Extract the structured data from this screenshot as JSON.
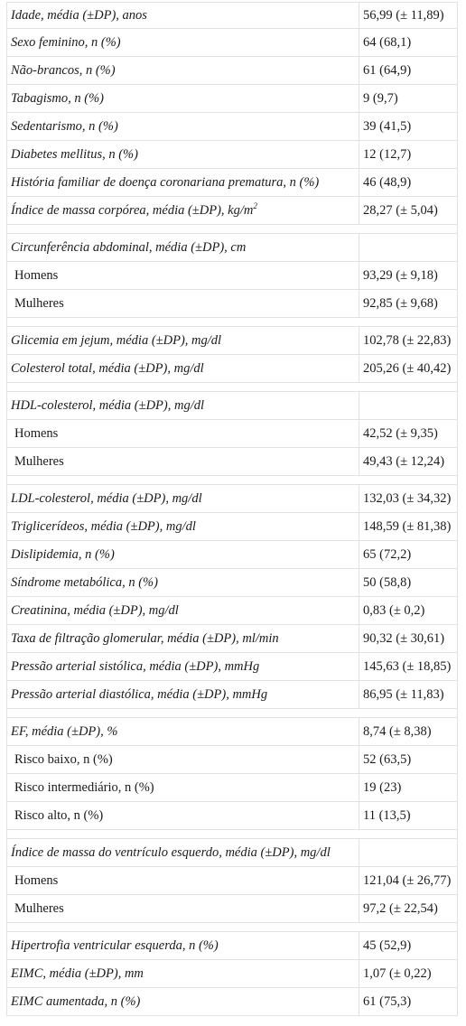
{
  "table": {
    "rows": [
      {
        "type": "italic",
        "label": "Idade, média (±DP), anos",
        "value": "56,99 (± 11,89)"
      },
      {
        "type": "italic",
        "label": "Sexo feminino, n (%)",
        "value": "64 (68,1)"
      },
      {
        "type": "italic",
        "label": "Não-brancos, n (%)",
        "value": "61 (64,9)"
      },
      {
        "type": "italic",
        "label": "Tabagismo, n (%)",
        "value": "9 (9,7)"
      },
      {
        "type": "italic",
        "label": "Sedentarismo, n (%)",
        "value": "39 (41,5)"
      },
      {
        "type": "italic",
        "label": "Diabetes mellitus, n (%)",
        "value": "12 (12,7)"
      },
      {
        "type": "italic",
        "label": "História familiar de doença coronariana prematura, n (%)",
        "value": "46 (48,9)"
      },
      {
        "type": "italic",
        "label": "Índice de massa corpórea, média (±DP), kg/m",
        "sup": "2",
        "value": "28,27 (± 5,04)"
      },
      {
        "type": "spacer"
      },
      {
        "type": "italic",
        "label": "Circunferência abdominal, média (±DP), cm",
        "value": ""
      },
      {
        "type": "sub",
        "label": "Homens",
        "value": "93,29 (± 9,18)"
      },
      {
        "type": "sub",
        "label": "Mulheres",
        "value": "92,85 (± 9,68)"
      },
      {
        "type": "spacer"
      },
      {
        "type": "italic",
        "label": "Glicemia em jejum, média (±DP), mg/dl",
        "value": "102,78 (± 22,83)"
      },
      {
        "type": "italic",
        "label": "Colesterol total, média (±DP), mg/dl",
        "value": "205,26 (± 40,42)"
      },
      {
        "type": "spacer"
      },
      {
        "type": "italic",
        "label": "HDL-colesterol, média (±DP), mg/dl",
        "value": ""
      },
      {
        "type": "sub",
        "label": "Homens",
        "value": "42,52 (± 9,35)"
      },
      {
        "type": "sub",
        "label": "Mulheres",
        "value": "49,43 (± 12,24)"
      },
      {
        "type": "spacer"
      },
      {
        "type": "italic",
        "label": "LDL-colesterol, média (±DP), mg/dl",
        "value": "132,03 (± 34,32)"
      },
      {
        "type": "italic",
        "label": "Triglicerídeos, média (±DP), mg/dl",
        "value": "148,59 (± 81,38)"
      },
      {
        "type": "italic",
        "label": "Dislipidemia, n (%)",
        "value": "65 (72,2)"
      },
      {
        "type": "italic",
        "label": "Síndrome metabólica, n (%)",
        "value": "50 (58,8)"
      },
      {
        "type": "italic",
        "label": "Creatinina, média (±DP), mg/dl",
        "value": "0,83 (± 0,2)"
      },
      {
        "type": "italic",
        "label": "Taxa de filtração glomerular, média (±DP), ml/min",
        "value": "90,32 (± 30,61)"
      },
      {
        "type": "italic",
        "label": "Pressão arterial sistólica, média (±DP), mmHg",
        "value": "145,63 (± 18,85)"
      },
      {
        "type": "italic",
        "label": "Pressão arterial diastólica, média (±DP), mmHg",
        "value": "86,95 (± 11,83)"
      },
      {
        "type": "spacer"
      },
      {
        "type": "italic",
        "label": "EF, média (±DP), %",
        "value": "8,74 (± 8,38)"
      },
      {
        "type": "sub",
        "label": "Risco baixo, n (%)",
        "value": "52 (63,5)"
      },
      {
        "type": "sub",
        "label": "Risco intermediário, n (%)",
        "value": "19 (23)"
      },
      {
        "type": "sub",
        "label": "Risco alto, n (%)",
        "value": "11 (13,5)"
      },
      {
        "type": "spacer"
      },
      {
        "type": "italic",
        "label": "Índice de massa do ventrículo esquerdo, média (±DP), mg/dl",
        "value": ""
      },
      {
        "type": "sub",
        "label": "Homens",
        "value": "121,04 (± 26,77)"
      },
      {
        "type": "sub",
        "label": "Mulheres",
        "value": "97,2 (± 22,54)"
      },
      {
        "type": "spacer"
      },
      {
        "type": "italic",
        "label": "Hipertrofia ventricular esquerda, n (%)",
        "value": "45 (52,9)"
      },
      {
        "type": "italic",
        "label": "EIMC, média (±DP), mm",
        "value": "1,07 (± 0,22)"
      },
      {
        "type": "italic",
        "label": "EIMC aumentada, n (%)",
        "value": "61 (75,3)"
      }
    ]
  }
}
